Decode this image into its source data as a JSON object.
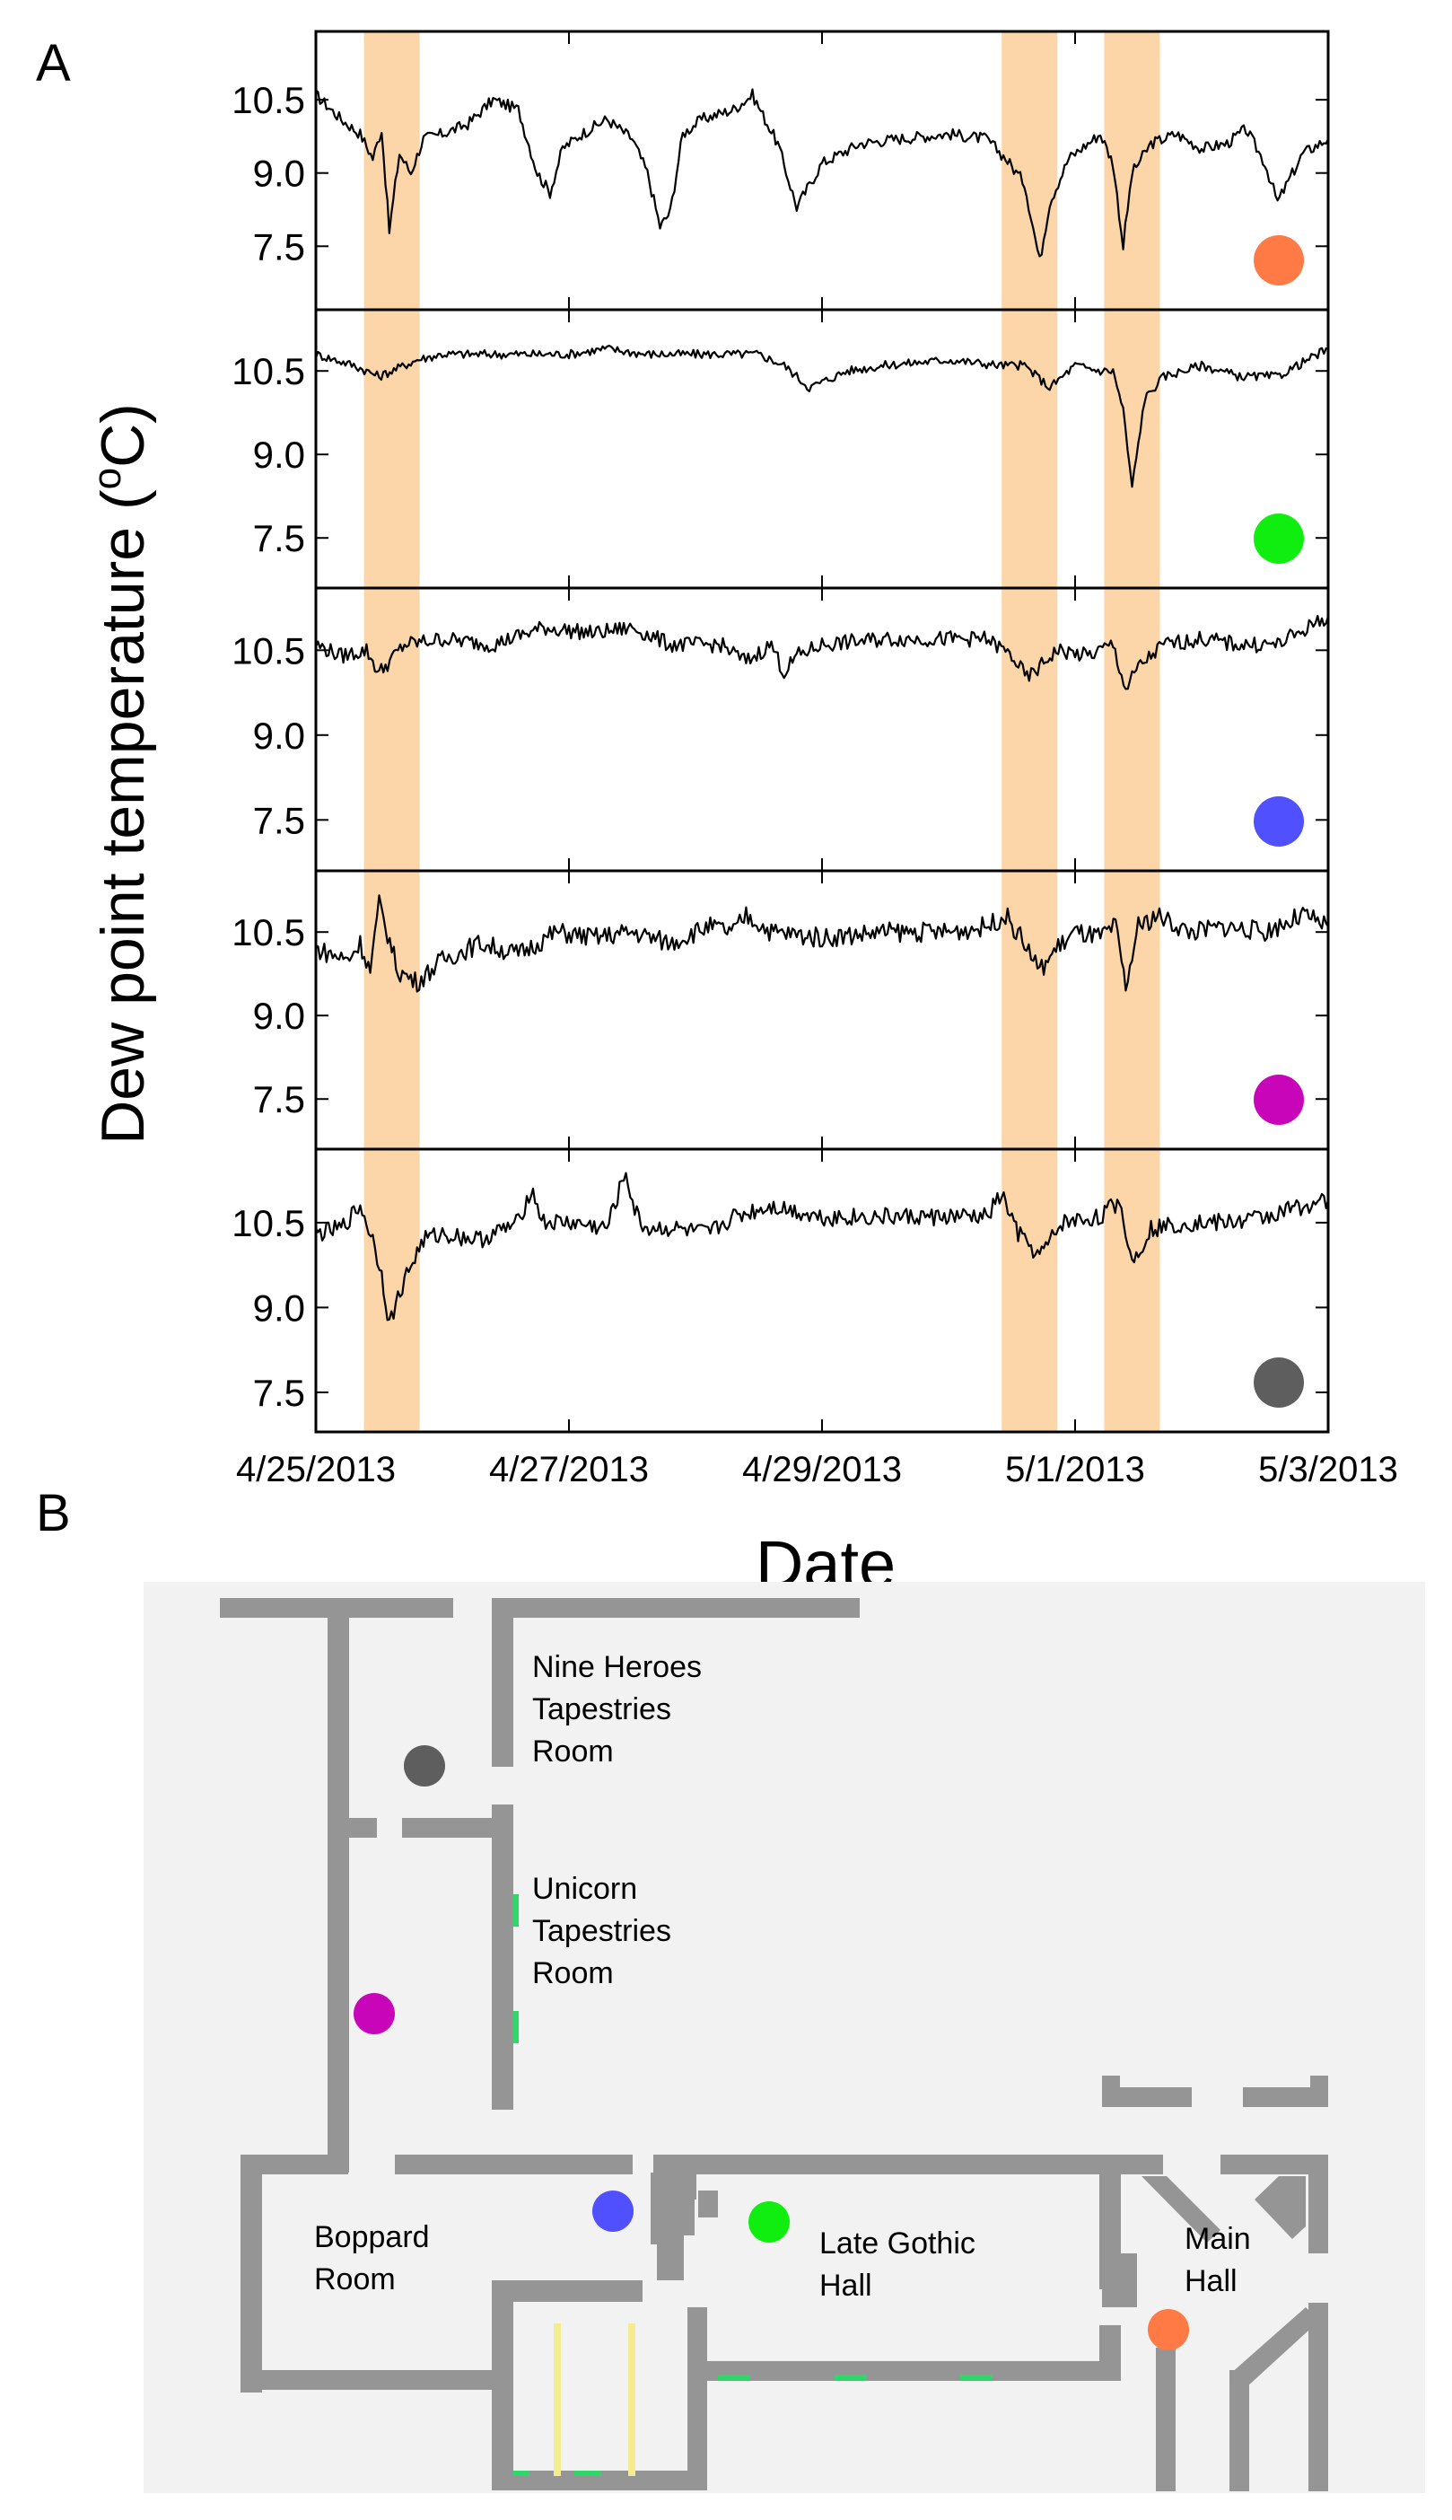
{
  "panel_labels": {
    "a": "A",
    "b": "B"
  },
  "chart_data": {
    "type": "line",
    "xlabel": "Date",
    "ylabel": "Dew point temperature (°C)",
    "ylabel_prefix": "Dew point temperature (",
    "ylabel_degree": "o",
    "ylabel_suffix": "C)",
    "xlim": [
      0,
      8
    ],
    "x_ticks": [
      0,
      2,
      4,
      6,
      8
    ],
    "x_tick_labels": [
      "4/25/2013",
      "4/27/2013",
      "4/29/2013",
      "5/1/2013",
      "5/3/2013"
    ],
    "y_ticks": [
      7.5,
      9.0,
      10.5
    ],
    "y_tick_labels": [
      "7.5",
      "9.0",
      "10.5"
    ],
    "highlight_spans": [
      [
        0.38,
        0.82
      ],
      [
        5.42,
        5.86
      ],
      [
        6.23,
        6.67
      ]
    ],
    "highlight_color": "#fcd5a8",
    "series": [
      {
        "name": "Main Hall",
        "color": "#ff7a45",
        "ylim": [
          6.2,
          11.9
        ],
        "x": [
          0,
          0.2,
          0.35,
          0.45,
          0.52,
          0.58,
          0.66,
          0.75,
          0.85,
          1.0,
          1.2,
          1.4,
          1.6,
          1.75,
          1.85,
          1.95,
          2.1,
          2.3,
          2.5,
          2.62,
          2.72,
          2.8,
          2.9,
          3.05,
          3.3,
          3.45,
          3.55,
          3.65,
          3.8,
          4.0,
          4.3,
          4.6,
          5.0,
          5.3,
          5.45,
          5.6,
          5.72,
          5.8,
          5.95,
          6.2,
          6.3,
          6.38,
          6.45,
          6.6,
          6.8,
          7.0,
          7.2,
          7.35,
          7.5,
          7.6,
          7.8,
          8.0
        ],
        "values": [
          10.6,
          10.1,
          9.8,
          9.3,
          9.9,
          7.8,
          9.4,
          9.0,
          9.7,
          9.8,
          10.0,
          10.5,
          10.3,
          9.0,
          8.6,
          9.5,
          9.8,
          10.1,
          9.7,
          9.0,
          7.9,
          8.2,
          9.8,
          10.1,
          10.3,
          10.6,
          10.1,
          9.6,
          8.3,
          9.2,
          9.6,
          9.7,
          9.8,
          9.7,
          9.3,
          8.8,
          7.2,
          8.4,
          9.3,
          9.8,
          9.2,
          7.5,
          9.0,
          9.6,
          9.8,
          9.5,
          9.6,
          9.9,
          9.2,
          8.4,
          9.4,
          9.7
        ]
      },
      {
        "name": "Late Gothic Hall",
        "color": "#10ee10",
        "ylim": [
          6.6,
          11.6
        ],
        "x": [
          0,
          0.3,
          0.5,
          0.8,
          1.0,
          1.5,
          2.0,
          2.3,
          2.6,
          3.0,
          3.5,
          3.7,
          3.9,
          4.2,
          4.5,
          5.0,
          5.4,
          5.6,
          5.8,
          6.0,
          6.2,
          6.3,
          6.38,
          6.45,
          6.55,
          6.7,
          7.0,
          7.3,
          7.6,
          8.0
        ],
        "values": [
          10.8,
          10.6,
          10.4,
          10.7,
          10.8,
          10.8,
          10.8,
          10.9,
          10.8,
          10.8,
          10.8,
          10.6,
          10.2,
          10.5,
          10.6,
          10.7,
          10.6,
          10.6,
          10.2,
          10.6,
          10.5,
          10.5,
          9.8,
          8.4,
          10.0,
          10.4,
          10.6,
          10.4,
          10.4,
          10.9
        ]
      },
      {
        "name": "Unicorn Tapestries Room",
        "color": "#5050ff",
        "ylim": [
          6.6,
          11.6
        ],
        "x": [
          0,
          0.2,
          0.4,
          0.5,
          0.7,
          1.0,
          1.4,
          1.8,
          2.2,
          2.5,
          2.8,
          3.2,
          3.4,
          3.6,
          3.7,
          3.8,
          4.0,
          4.5,
          5.0,
          5.3,
          5.5,
          5.62,
          5.72,
          5.85,
          6.1,
          6.3,
          6.4,
          6.5,
          6.7,
          7.0,
          7.3,
          7.6,
          8.0
        ],
        "values": [
          10.6,
          10.4,
          10.5,
          10.1,
          10.6,
          10.7,
          10.6,
          10.9,
          10.8,
          10.9,
          10.6,
          10.6,
          10.3,
          10.6,
          10.1,
          10.4,
          10.6,
          10.7,
          10.7,
          10.7,
          10.4,
          10.0,
          10.2,
          10.5,
          10.4,
          10.6,
          9.8,
          10.2,
          10.6,
          10.7,
          10.6,
          10.6,
          11.1
        ]
      },
      {
        "name": "Boppard Room",
        "color": "#c805b8",
        "ylim": [
          6.6,
          11.6
        ],
        "x": [
          0,
          0.25,
          0.35,
          0.43,
          0.5,
          0.65,
          0.8,
          1.0,
          1.3,
          1.6,
          1.9,
          2.2,
          2.5,
          2.8,
          3.1,
          3.3,
          3.4,
          3.6,
          4.0,
          4.5,
          5.0,
          5.3,
          5.45,
          5.6,
          5.72,
          5.85,
          6.0,
          6.2,
          6.32,
          6.4,
          6.5,
          6.65,
          6.9,
          7.2,
          7.5,
          7.8,
          8.0
        ],
        "values": [
          10.2,
          10.0,
          10.3,
          9.8,
          11.0,
          9.8,
          9.6,
          10.0,
          10.3,
          10.1,
          10.5,
          10.4,
          10.5,
          10.3,
          10.6,
          10.5,
          10.8,
          10.5,
          10.4,
          10.5,
          10.5,
          10.6,
          10.8,
          10.3,
          9.8,
          10.2,
          10.5,
          10.4,
          10.6,
          9.5,
          10.6,
          10.8,
          10.5,
          10.6,
          10.5,
          10.8,
          10.6
        ]
      },
      {
        "name": "Nine Heroes Tapestries Room",
        "color": "#5e5e5e",
        "ylim": [
          6.8,
          11.8
        ],
        "x": [
          0,
          0.2,
          0.35,
          0.45,
          0.52,
          0.58,
          0.7,
          0.85,
          1.0,
          1.3,
          1.6,
          1.7,
          1.8,
          2.0,
          2.3,
          2.45,
          2.52,
          2.6,
          2.8,
          3.1,
          3.3,
          3.6,
          4.0,
          4.5,
          5.0,
          5.3,
          5.42,
          5.55,
          5.72,
          5.9,
          6.2,
          6.35,
          6.45,
          6.6,
          6.9,
          7.2,
          7.5,
          7.8,
          8.0
        ],
        "values": [
          10.3,
          10.4,
          10.8,
          10.2,
          9.6,
          8.7,
          9.5,
          10.2,
          10.3,
          10.2,
          10.5,
          11.1,
          10.5,
          10.5,
          10.4,
          11.4,
          10.7,
          10.4,
          10.4,
          10.3,
          10.6,
          10.8,
          10.6,
          10.6,
          10.6,
          10.6,
          11.0,
          10.3,
          9.9,
          10.5,
          10.6,
          10.9,
          9.8,
          10.4,
          10.5,
          10.5,
          10.6,
          10.8,
          10.9
        ]
      }
    ]
  },
  "floor_plan": {
    "rooms": {
      "nine_heroes": [
        "Nine Heroes",
        "Tapestries",
        "Room"
      ],
      "unicorn": [
        "Unicorn",
        "Tapestries",
        "Room"
      ],
      "boppard": [
        "Boppard",
        "Room"
      ],
      "late_gothic": [
        "Late Gothic",
        "Hall"
      ],
      "main_hall": [
        "Main",
        "Hall"
      ]
    },
    "background_color": "#f2f2f2",
    "wall_color": "#959595"
  }
}
